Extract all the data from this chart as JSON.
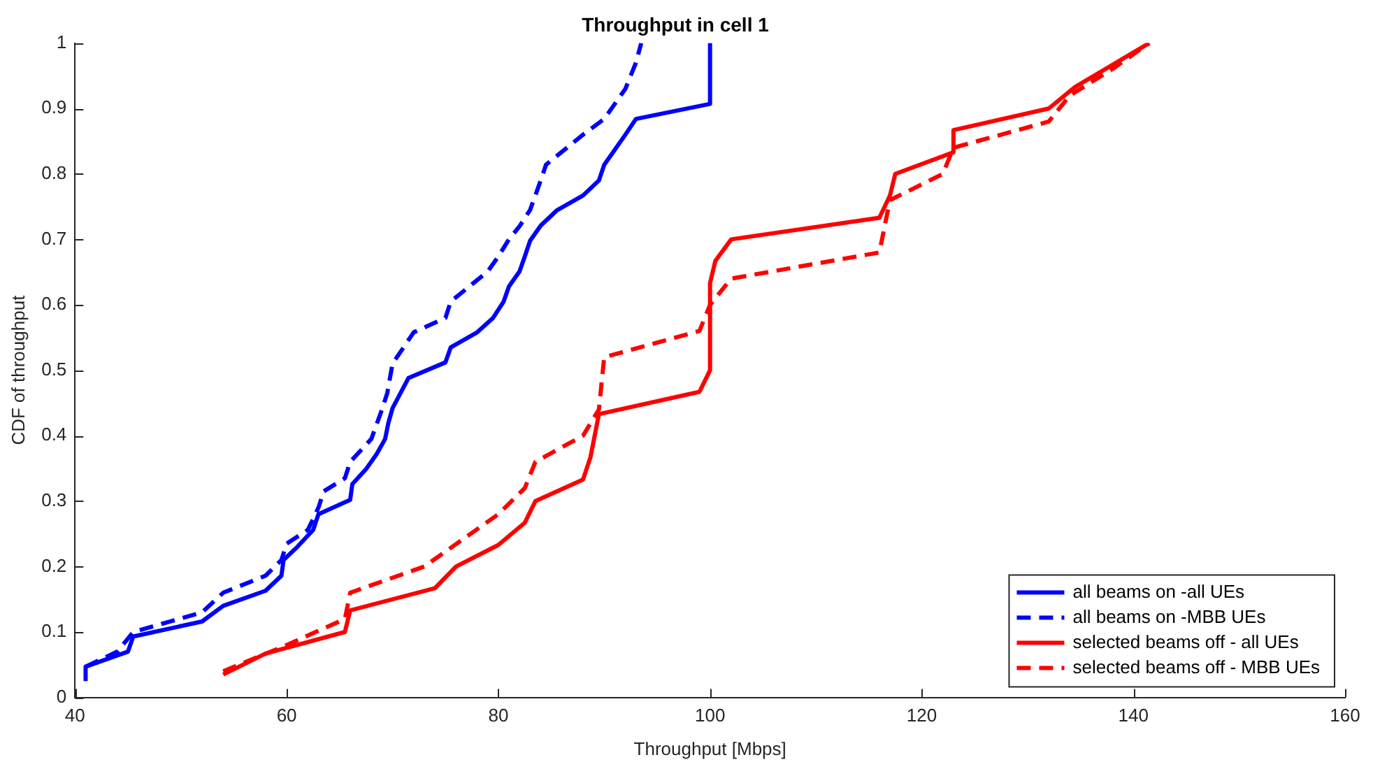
{
  "chart_data": {
    "type": "line",
    "title": "Throughput in cell 1",
    "xlabel": "Throughput [Mbps]",
    "ylabel": "CDF of throughput",
    "xlim": [
      40,
      160
    ],
    "xticks": [
      40,
      60,
      80,
      100,
      120,
      140,
      160
    ],
    "ylim": [
      0,
      1
    ],
    "yticks": [
      0,
      0.1,
      0.2,
      0.3,
      0.4,
      0.5,
      0.6,
      0.7,
      0.8,
      0.9,
      1
    ],
    "grid": false,
    "legend": "bottom right",
    "marker": "none",
    "series": [
      {
        "name": "all beams on -all UEs",
        "color": "#0000ff",
        "line_style": "solid",
        "x": [
          41,
          41,
          45,
          45.5,
          52,
          54,
          58,
          59.5,
          59.7,
          61,
          62.5,
          63,
          66,
          66.2,
          67.5,
          68.5,
          69.3,
          69.6,
          70,
          71.5,
          75,
          75.5,
          78,
          79.5,
          80.5,
          81,
          82,
          82.5,
          83,
          84,
          85.5,
          88,
          89.5,
          90,
          91,
          92,
          93,
          100,
          100
        ],
        "values": [
          0.025,
          0.047,
          0.07,
          0.093,
          0.116,
          0.14,
          0.163,
          0.186,
          0.21,
          0.23,
          0.256,
          0.28,
          0.302,
          0.326,
          0.349,
          0.372,
          0.395,
          0.419,
          0.442,
          0.488,
          0.512,
          0.535,
          0.558,
          0.58,
          0.605,
          0.628,
          0.651,
          0.674,
          0.698,
          0.721,
          0.744,
          0.767,
          0.79,
          0.814,
          0.837,
          0.86,
          0.884,
          0.907,
          1.0
        ]
      },
      {
        "name": "all beams on -MBB UEs",
        "color": "#0000ff",
        "line_style": "dashed",
        "x": [
          41,
          44,
          45.5,
          52,
          54,
          58,
          59.5,
          60,
          62,
          63,
          63.5,
          65.5,
          66,
          68,
          69,
          69.5,
          70,
          72,
          75,
          75.5,
          79,
          80,
          81,
          82,
          83,
          84,
          84.5,
          88,
          90,
          91,
          92,
          93,
          93.5
        ],
        "values": [
          0.047,
          0.07,
          0.1,
          0.13,
          0.16,
          0.186,
          0.21,
          0.235,
          0.256,
          0.29,
          0.315,
          0.335,
          0.36,
          0.395,
          0.44,
          0.465,
          0.51,
          0.558,
          0.58,
          0.605,
          0.651,
          0.674,
          0.7,
          0.72,
          0.745,
          0.79,
          0.814,
          0.86,
          0.884,
          0.907,
          0.93,
          0.97,
          1.0
        ]
      },
      {
        "name": "selected beams off - all UEs",
        "color": "#ff0000",
        "line_style": "solid",
        "x": [
          54,
          58,
          65.5,
          66,
          74,
          76,
          80,
          82.5,
          83.5,
          88,
          88.7,
          89.5,
          99,
          100,
          100,
          100.5,
          102,
          116,
          117,
          117.5,
          123,
          123,
          132,
          134.5,
          141.5
        ],
        "values": [
          0.035,
          0.067,
          0.1,
          0.133,
          0.167,
          0.2,
          0.233,
          0.267,
          0.3,
          0.333,
          0.367,
          0.433,
          0.467,
          0.5,
          0.633,
          0.667,
          0.7,
          0.733,
          0.767,
          0.8,
          0.833,
          0.867,
          0.9,
          0.933,
          1.0
        ]
      },
      {
        "name": "selected beams off - MBB UEs",
        "color": "#ff0000",
        "line_style": "dashed",
        "x": [
          54,
          60,
          65.5,
          66,
          73,
          80,
          82.5,
          83.5,
          88,
          89.5,
          90,
          99,
          100,
          102,
          116,
          117,
          122,
          123,
          132,
          134,
          138,
          141.5
        ],
        "values": [
          0.04,
          0.08,
          0.12,
          0.16,
          0.2,
          0.28,
          0.32,
          0.36,
          0.4,
          0.44,
          0.52,
          0.56,
          0.6,
          0.64,
          0.68,
          0.76,
          0.8,
          0.84,
          0.88,
          0.92,
          0.96,
          1.0
        ]
      }
    ]
  }
}
